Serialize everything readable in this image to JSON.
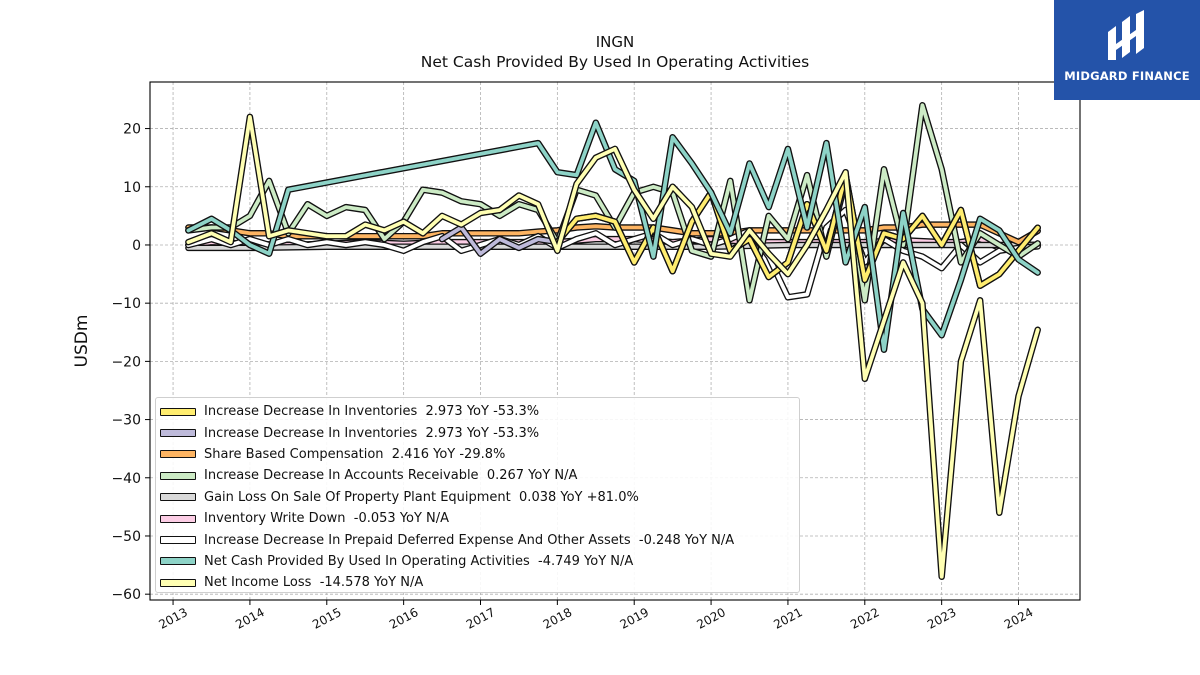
{
  "brand": {
    "name": "MIDGARD FINANCE",
    "icon": "midgard-logo-icon",
    "color": "#2453a9"
  },
  "chart_data": {
    "type": "line",
    "title": "INGN",
    "subtitle": "Net Cash Provided By Used In Operating Activities",
    "ylabel": "USDm",
    "xlabel": "",
    "xlim": [
      2012.7,
      2024.8
    ],
    "ylim": [
      -61,
      28
    ],
    "x_ticks": [
      "2013",
      "2014",
      "2015",
      "2016",
      "2017",
      "2018",
      "2019",
      "2020",
      "2021",
      "2022",
      "2023",
      "2024"
    ],
    "y_ticks": [
      "20",
      "10",
      "0",
      "−10",
      "−20",
      "−30",
      "−40",
      "−50",
      "−60"
    ],
    "y_tick_values": [
      20,
      10,
      0,
      -10,
      -20,
      -30,
      -40,
      -50,
      -60
    ],
    "grid": true,
    "legend_position": "lower-left",
    "series": [
      {
        "name": "Increase Decrease In Inventories",
        "legend": "Increase Decrease In Inventories  2.973 YoY -53.3%",
        "color": "#ffed6f",
        "x": [
          2018.0,
          2018.25,
          2018.5,
          2018.75,
          2019.0,
          2019.25,
          2019.5,
          2019.75,
          2020.0,
          2020.25,
          2020.5,
          2020.75,
          2021.0,
          2021.25,
          2021.5,
          2021.75,
          2022.0,
          2022.25,
          2022.5,
          2022.75,
          2023.0,
          2023.25,
          2023.5,
          2023.75,
          2024.0,
          2024.25
        ],
        "y": [
          0.5,
          4.5,
          5,
          4,
          -3,
          3,
          -4.5,
          4,
          9,
          -1,
          1,
          -5.5,
          -3,
          7,
          -1,
          12,
          -6,
          2,
          1,
          5,
          0,
          6,
          -7,
          -5,
          -1,
          2.973
        ]
      },
      {
        "name": "Increase Decrease In Inventories",
        "legend": "Increase Decrease In Inventories  2.973 YoY -53.3%",
        "color": "#bebada",
        "x": [
          2016.5,
          2016.75,
          2017.0,
          2017.25,
          2017.5,
          2017.75,
          2018.0,
          2018.25,
          2018.5,
          2018.75,
          2019.0,
          2019.25,
          2019.5,
          2019.75,
          2020.0,
          2020.25,
          2020.5,
          2020.75,
          2021.0,
          2021.25,
          2021.5,
          2021.75,
          2022.0,
          2022.25,
          2022.5,
          2022.75,
          2023.0,
          2023.25,
          2023.5,
          2023.75,
          2024.0,
          2024.25
        ],
        "y": [
          1,
          3,
          -1.5,
          1,
          -0.5,
          1,
          0.5,
          4.5,
          5,
          4,
          -3,
          3,
          -4.5,
          4,
          9,
          -1,
          1,
          -5.5,
          -3,
          7,
          -1,
          12,
          -6,
          2,
          1,
          5,
          0,
          6,
          -7,
          -5,
          -1,
          2.973
        ]
      },
      {
        "name": "Share Based Compensation",
        "legend": "Share Based Compensation  2.416 YoY -29.8%",
        "color": "#fdb462",
        "x": [
          2013.2,
          2013.5,
          2013.75,
          2014.0,
          2014.25,
          2014.5,
          2014.75,
          2015.0,
          2015.25,
          2015.5,
          2015.75,
          2016.0,
          2016.25,
          2016.5,
          2016.75,
          2017.0,
          2017.25,
          2017.5,
          2017.75,
          2018.0,
          2018.25,
          2018.5,
          2018.75,
          2019.0,
          2019.25,
          2019.5,
          2019.75,
          2020.0,
          2020.25,
          2020.5,
          2020.75,
          2021.0,
          2021.25,
          2021.5,
          2021.75,
          2022.0,
          2022.25,
          2022.5,
          2022.75,
          2023.0,
          2023.25,
          2023.5,
          2023.75,
          2024.0,
          2024.25
        ],
        "y": [
          3,
          3,
          2.5,
          2,
          2,
          1.5,
          1.5,
          1.5,
          1.5,
          1.5,
          1.5,
          1.5,
          1.5,
          2,
          2,
          2,
          2,
          2,
          2.3,
          2.5,
          3,
          3.2,
          3,
          3,
          3,
          2.5,
          2,
          2,
          2,
          2.5,
          2.5,
          2.5,
          2.5,
          2.5,
          2.5,
          2.5,
          3,
          3,
          3.5,
          3.5,
          3.5,
          3.5,
          2,
          0.5,
          2.416
        ]
      },
      {
        "name": "Increase Decrease In Accounts Receivable",
        "legend": "Increase Decrease In Accounts Receivable  0.267 YoY N/A",
        "color": "#ccebc5",
        "x": [
          2013.2,
          2013.5,
          2013.75,
          2014.0,
          2014.25,
          2014.5,
          2014.75,
          2015.0,
          2015.25,
          2015.5,
          2015.75,
          2016.0,
          2016.25,
          2016.5,
          2016.75,
          2017.0,
          2017.25,
          2017.5,
          2017.75,
          2018.0,
          2018.25,
          2018.5,
          2018.75,
          2019.0,
          2019.25,
          2019.5,
          2019.75,
          2020.0,
          2020.25,
          2020.5,
          2020.75,
          2021.0,
          2021.25,
          2021.5,
          2021.75,
          2022.0,
          2022.25,
          2022.5,
          2022.75,
          2023.0,
          2023.25,
          2023.5,
          2023.75,
          2024.0,
          2024.25
        ],
        "y": [
          2.5,
          3,
          3,
          5,
          11,
          2,
          7,
          5,
          6.5,
          6,
          1,
          4,
          9.5,
          9,
          7.5,
          7,
          5,
          7,
          6,
          0.5,
          9.5,
          8.5,
          3,
          9,
          10,
          9,
          -1,
          -2,
          11,
          -9.5,
          5,
          1,
          12,
          -2,
          11,
          -9.5,
          13,
          0,
          24,
          13,
          -3,
          2,
          0,
          -2,
          0.267
        ]
      },
      {
        "name": "Gain Loss On Sale Of Property Plant Equipment",
        "legend": "Gain Loss On Sale Of Property Plant Equipment  0.038 YoY +81.0%",
        "color": "#d9d9d9",
        "x": [
          2013.2,
          2014.0,
          2015.0,
          2016.0,
          2017.0,
          2018.0,
          2019.0,
          2020.0,
          2021.0,
          2022.0,
          2023.0,
          2024.0,
          2024.25
        ],
        "y": [
          -0.5,
          -0.5,
          -0.3,
          -0.3,
          -0.3,
          -0.3,
          -0.3,
          -0.3,
          0,
          0,
          0,
          0,
          0.038
        ]
      },
      {
        "name": "Inventory Write Down",
        "legend": "Inventory Write Down  -0.053 YoY N/A",
        "color": "#fccde5",
        "x": [
          2013.2,
          2013.5,
          2014.0,
          2014.5,
          2015.0,
          2015.5,
          2016.0,
          2016.5,
          2017.0,
          2017.5,
          2018.0,
          2018.5,
          2019.0,
          2019.5,
          2020.0,
          2020.5,
          2021.0,
          2021.5,
          2022.0,
          2022.5,
          2023.0,
          2023.25,
          2023.5,
          2023.75,
          2024.0,
          2024.25
        ],
        "y": [
          0,
          0.5,
          0.2,
          0,
          0.2,
          0.5,
          0.2,
          0.5,
          0.5,
          0.5,
          0.5,
          1,
          1,
          0.5,
          1,
          0.5,
          0.5,
          0.5,
          0.5,
          0.8,
          0.5,
          0.5,
          1,
          -0.5,
          0,
          -0.053
        ]
      },
      {
        "name": "Increase Decrease In Prepaid Deferred Expense And Other Assets",
        "legend": "Increase Decrease In Prepaid Deferred Expense And Other Assets  -0.248 YoY N/A",
        "color": "#ffffff",
        "x": [
          2013.2,
          2013.5,
          2013.75,
          2014.0,
          2014.25,
          2014.5,
          2014.75,
          2015.0,
          2015.25,
          2015.5,
          2015.75,
          2016.0,
          2016.25,
          2016.5,
          2016.75,
          2017.0,
          2017.25,
          2017.5,
          2017.75,
          2018.0,
          2018.25,
          2018.5,
          2018.75,
          2019.0,
          2019.25,
          2019.5,
          2019.75,
          2020.0,
          2020.25,
          2020.5,
          2020.75,
          2021.0,
          2021.25,
          2021.5,
          2021.75,
          2022.0,
          2022.25,
          2022.5,
          2022.75,
          2023.0,
          2023.25,
          2023.5,
          2023.75,
          2024.0,
          2024.25
        ],
        "y": [
          0,
          1,
          0,
          1,
          0,
          1,
          0,
          0.5,
          0,
          0.5,
          0,
          -1,
          0.5,
          1.5,
          -1,
          0,
          1,
          0,
          1.5,
          -0.5,
          1,
          2,
          0,
          1,
          2,
          0,
          1,
          0,
          1,
          2.5,
          -2,
          -9,
          -8.5,
          3,
          6,
          -3,
          1,
          -1,
          -2,
          -4,
          0,
          -3,
          -1,
          -0.5,
          -0.248
        ]
      },
      {
        "name": "Net Cash Provided By Used In Operating Activities",
        "legend": "Net Cash Provided By Used In Operating Activities  -4.749 YoY N/A",
        "color": "#8dd3c7",
        "x": [
          2013.2,
          2013.5,
          2013.75,
          2014.0,
          2014.25,
          2014.5,
          2017.75,
          2018.0,
          2018.25,
          2018.5,
          2018.75,
          2019.0,
          2019.25,
          2019.5,
          2019.75,
          2020.0,
          2020.25,
          2020.5,
          2020.75,
          2021.0,
          2021.25,
          2021.5,
          2021.75,
          2022.0,
          2022.25,
          2022.5,
          2022.75,
          2023.0,
          2023.25,
          2023.5,
          2023.75,
          2024.0,
          2024.25
        ],
        "y": [
          2.5,
          4.5,
          2.5,
          0,
          -1.5,
          9.5,
          17.5,
          12.5,
          12,
          21,
          13,
          11,
          -2,
          18.5,
          14,
          9,
          2,
          14,
          6.5,
          16.5,
          3,
          17.5,
          -3,
          6.5,
          -18,
          5.5,
          -11,
          -15.5,
          -6,
          4.5,
          2.5,
          -2.5,
          -4.749
        ]
      },
      {
        "name": "Net Income Loss",
        "legend": "Net Income Loss  -14.578 YoY N/A",
        "color": "#ffffb3",
        "x": [
          2013.2,
          2013.5,
          2013.75,
          2014.0,
          2014.25,
          2014.5,
          2014.75,
          2015.0,
          2015.25,
          2015.5,
          2015.75,
          2016.0,
          2016.25,
          2016.5,
          2016.75,
          2017.0,
          2017.25,
          2017.5,
          2017.75,
          2018.0,
          2018.25,
          2018.5,
          2018.75,
          2019.0,
          2019.25,
          2019.5,
          2019.75,
          2020.0,
          2020.25,
          2020.5,
          2020.75,
          2021.0,
          2021.25,
          2021.5,
          2021.75,
          2022.0,
          2022.25,
          2022.5,
          2022.75,
          2023.0,
          2023.25,
          2023.5,
          2023.75,
          2024.0,
          2024.25
        ],
        "y": [
          0.5,
          2,
          0.5,
          22,
          1.5,
          2.5,
          2,
          1.5,
          1.5,
          3.5,
          2.5,
          4,
          2,
          5,
          3.5,
          5.5,
          6,
          8.5,
          7,
          -1,
          10.5,
          15,
          16.5,
          9.5,
          4.5,
          10,
          6.5,
          -1.5,
          -2,
          2.5,
          -1.5,
          -5,
          0,
          6,
          12.5,
          -23,
          -13,
          -3,
          -10,
          -57,
          -20,
          -9.5,
          -46,
          -26,
          -14.578
        ]
      }
    ]
  }
}
